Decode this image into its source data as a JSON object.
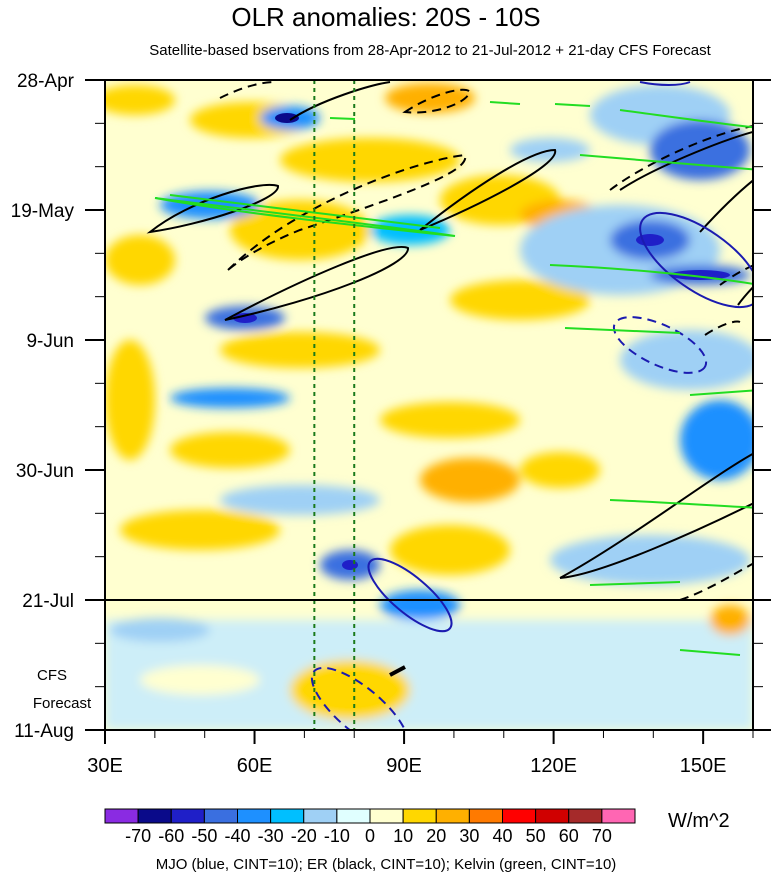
{
  "chart_data": {
    "type": "heatmap",
    "title": "OLR anomalies: 20S - 10S",
    "subtitle": "Satellite-based bservations from 28-Apr-2012 to 21-Jul-2012 + 21-day CFS Forecast",
    "x_axis": {
      "range": [
        30,
        160
      ],
      "ticks": [
        {
          "value": 30,
          "label": "30E"
        },
        {
          "value": 60,
          "label": "60E"
        },
        {
          "value": 90,
          "label": "90E"
        },
        {
          "value": 120,
          "label": "120E"
        },
        {
          "value": 150,
          "label": "150E"
        }
      ]
    },
    "y_axis": {
      "range_days": [
        0,
        105
      ],
      "ticks": [
        {
          "day": 0,
          "label": "28-Apr"
        },
        {
          "day": 21,
          "label": "19-May"
        },
        {
          "day": 42,
          "label": "9-Jun"
        },
        {
          "day": 63,
          "label": "30-Jun"
        },
        {
          "day": 84,
          "label": "21-Jul"
        },
        {
          "day": 105,
          "label": "11-Aug"
        }
      ],
      "observation_end_day": 84
    },
    "forecast_label": [
      "CFS",
      "Forecast"
    ],
    "colorbar": {
      "levels": [
        "-70",
        "-60",
        "-50",
        "-40",
        "-30",
        "-20",
        "-10",
        "0",
        "10",
        "20",
        "30",
        "40",
        "50",
        "60",
        "70"
      ],
      "colors": [
        "#8a2be2",
        "#0a0a8a",
        "#1f1fc8",
        "#3a6fe0",
        "#1e90ff",
        "#00bfff",
        "#9fd0f5",
        "#e0ffff",
        "#ffffd0",
        "#ffd700",
        "#ffb000",
        "#ff7a00",
        "#ff0000",
        "#d00000",
        "#a52a2a",
        "#ff66b3"
      ],
      "units": "W/m^2"
    },
    "contours": {
      "MJO": {
        "color": "#1b1bb0",
        "cint": 10
      },
      "ER": {
        "color": "#000000",
        "cint": 10
      },
      "Kelvin": {
        "color": "#22dd22",
        "cint": 10
      }
    },
    "reference_lines_lon": [
      72,
      80
    ],
    "footer": "MJO (blue, CINT=10); ER (black, CINT=10); Kelvin (green, CINT=10)"
  }
}
